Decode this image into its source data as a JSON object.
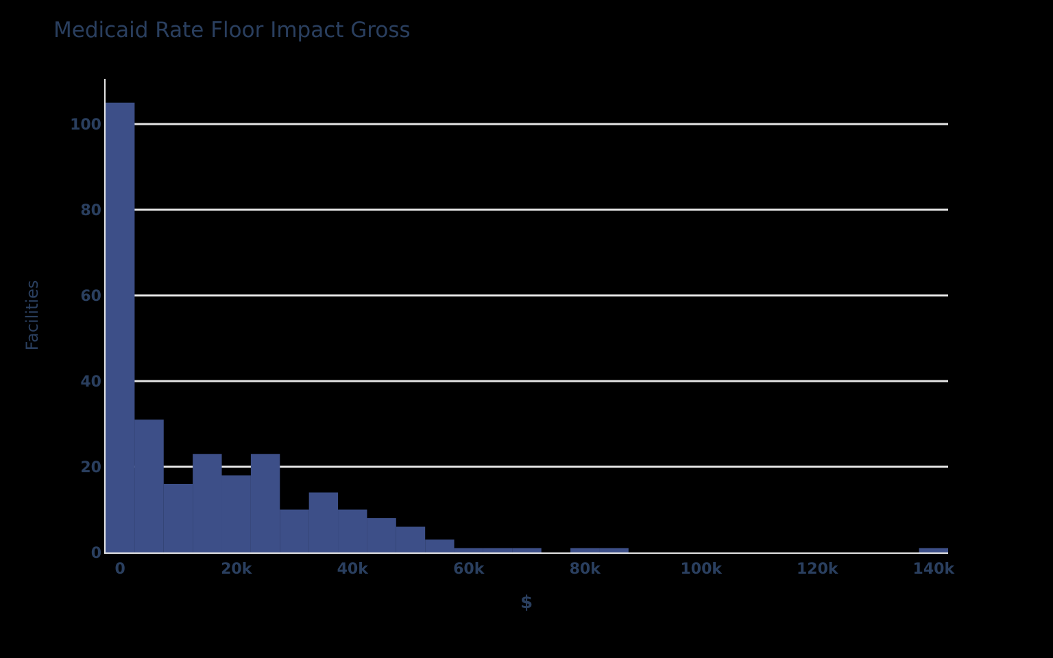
{
  "title": "Medicaid Rate Floor Impact Gross",
  "colors": {
    "bar": "#3d4f88",
    "grid": "#e5e5e5",
    "text": "#2a3f5f",
    "background": "#000000"
  },
  "chart_data": {
    "type": "bar",
    "subtype": "histogram",
    "title": "Medicaid Rate Floor Impact Gross",
    "xlabel": "$",
    "ylabel": "Facilities",
    "bin_width": 5000,
    "bin_start": -2500,
    "bins": [
      {
        "x0": -2500,
        "x1": 2500,
        "count": 105
      },
      {
        "x0": 2500,
        "x1": 7500,
        "count": 31
      },
      {
        "x0": 7500,
        "x1": 12500,
        "count": 16
      },
      {
        "x0": 12500,
        "x1": 17500,
        "count": 23
      },
      {
        "x0": 17500,
        "x1": 22500,
        "count": 18
      },
      {
        "x0": 22500,
        "x1": 27500,
        "count": 23
      },
      {
        "x0": 27500,
        "x1": 32500,
        "count": 10
      },
      {
        "x0": 32500,
        "x1": 37500,
        "count": 14
      },
      {
        "x0": 37500,
        "x1": 42500,
        "count": 10
      },
      {
        "x0": 42500,
        "x1": 47500,
        "count": 8
      },
      {
        "x0": 47500,
        "x1": 52500,
        "count": 6
      },
      {
        "x0": 52500,
        "x1": 57500,
        "count": 3
      },
      {
        "x0": 57500,
        "x1": 62500,
        "count": 1
      },
      {
        "x0": 62500,
        "x1": 67500,
        "count": 1
      },
      {
        "x0": 67500,
        "x1": 72500,
        "count": 1
      },
      {
        "x0": 72500,
        "x1": 77500,
        "count": 0
      },
      {
        "x0": 77500,
        "x1": 82500,
        "count": 1
      },
      {
        "x0": 82500,
        "x1": 87500,
        "count": 1
      },
      {
        "x0": 137500,
        "x1": 142500,
        "count": 1
      }
    ],
    "x_ticks": [
      {
        "value": 0,
        "label": "0"
      },
      {
        "value": 20000,
        "label": "20k"
      },
      {
        "value": 40000,
        "label": "40k"
      },
      {
        "value": 60000,
        "label": "60k"
      },
      {
        "value": 80000,
        "label": "80k"
      },
      {
        "value": 100000,
        "label": "100k"
      },
      {
        "value": 120000,
        "label": "120k"
      },
      {
        "value": 140000,
        "label": "140k"
      }
    ],
    "y_ticks": [
      {
        "value": 0,
        "label": "0"
      },
      {
        "value": 20,
        "label": "20"
      },
      {
        "value": 40,
        "label": "40"
      },
      {
        "value": 60,
        "label": "60"
      },
      {
        "value": 80,
        "label": "80"
      },
      {
        "value": 100,
        "label": "100"
      }
    ],
    "xlim": [
      -2500,
      142500
    ],
    "ylim": [
      0,
      110
    ],
    "grid": {
      "y": true,
      "x": false
    },
    "legend": "none"
  }
}
